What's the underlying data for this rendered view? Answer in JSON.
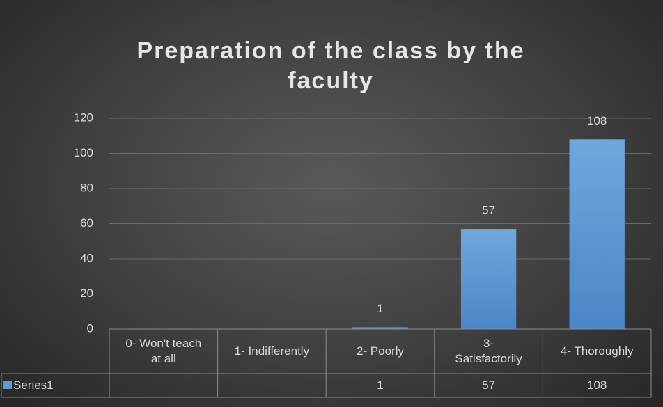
{
  "chart_data": {
    "type": "bar",
    "title": "Preparation of the class by the faculty",
    "categories": [
      "0- Won't teach at all",
      "1- Indifferently",
      "2- Poorly",
      "3- Satisfactorily",
      "4- Thoroughly"
    ],
    "series": [
      {
        "name": "Series1",
        "color": "#5b9bd5",
        "values": [
          null,
          null,
          1,
          57,
          108
        ]
      }
    ],
    "ylim": [
      0,
      120
    ],
    "yticks": [
      0,
      20,
      40,
      60,
      80,
      100,
      120
    ],
    "grid": true,
    "data_table": true
  }
}
